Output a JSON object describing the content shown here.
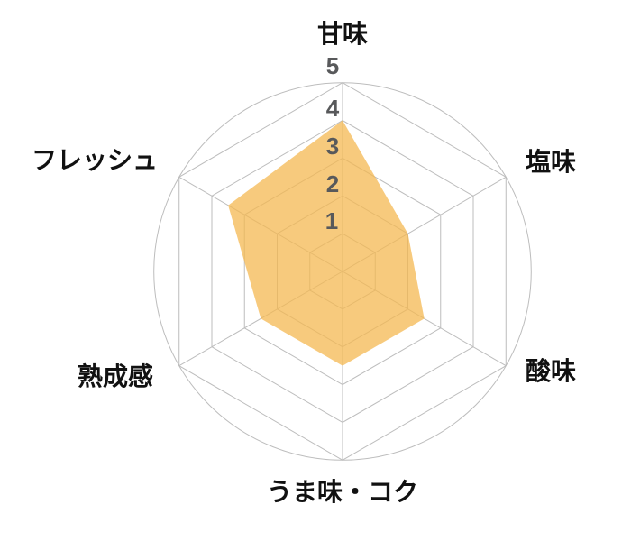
{
  "chart_data": {
    "type": "radar",
    "title": "",
    "categories": [
      "甘味",
      "塩味",
      "酸味",
      "うま味・コク",
      "熟成感",
      "フレッシュ"
    ],
    "values": [
      4,
      2,
      2.5,
      2.5,
      2.5,
      3.5
    ],
    "min": 0,
    "max": 5,
    "scale_ticks": {
      "t5": "5",
      "t4": "4",
      "t3": "3",
      "t2": "2",
      "t1": "1"
    },
    "rings": 5,
    "grid": "hexagonal rings + outer circle + spokes",
    "legend": "none",
    "fill_color": "#F4B852",
    "fill_opacity": 0.75,
    "grid_color": "#BDBDBD",
    "outer_circle_color": "#BDBDBD",
    "axis_label_color": "#111111",
    "tick_color": "#58595B",
    "background_color": "#FFFFFF"
  }
}
